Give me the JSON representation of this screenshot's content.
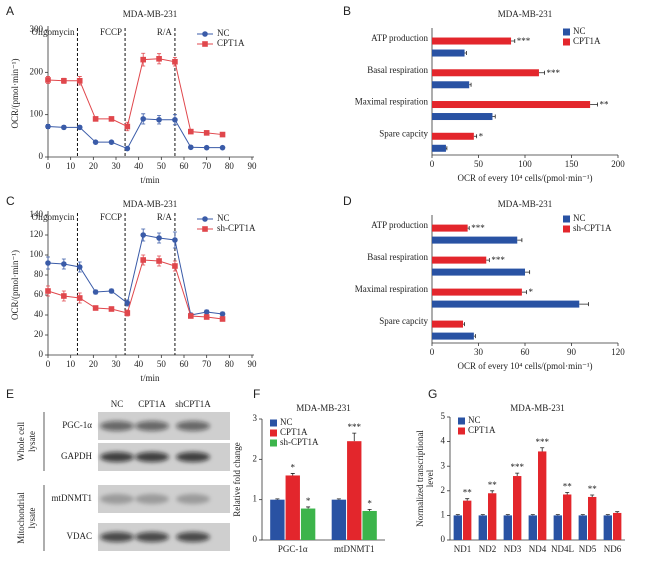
{
  "chart_data": [
    {
      "label": "A",
      "type": "line",
      "title": "MDA-MB-231",
      "xlabel": "t/min",
      "ylabel": "OCR/(pmol·min⁻¹)",
      "x": [
        0,
        7,
        14,
        21,
        28,
        35,
        42,
        49,
        56,
        63,
        70,
        77
      ],
      "series": [
        {
          "name": "NC",
          "color": "#3a5ba8",
          "marker": "circle",
          "values": [
            72,
            70,
            70,
            35,
            35,
            20,
            90,
            88,
            88,
            23,
            22,
            22
          ],
          "errors": [
            5,
            4,
            4,
            3,
            3,
            3,
            12,
            10,
            12,
            3,
            3,
            3
          ]
        },
        {
          "name": "CPT1A",
          "color": "#e0474c",
          "marker": "square",
          "values": [
            182,
            180,
            180,
            90,
            90,
            72,
            230,
            232,
            225,
            60,
            57,
            53
          ],
          "errors": [
            8,
            6,
            10,
            4,
            4,
            10,
            15,
            12,
            10,
            4,
            4,
            4
          ]
        }
      ],
      "xlim": [
        0,
        90
      ],
      "xticks": [
        0,
        10,
        20,
        30,
        40,
        50,
        60,
        70,
        80,
        90
      ],
      "ylim": [
        0,
        300
      ],
      "yticks": [
        0,
        100,
        200,
        300
      ],
      "annotations": [
        {
          "text": "Oligomycin",
          "x": 13
        },
        {
          "text": "FCCP",
          "x": 34
        },
        {
          "text": "R/A",
          "x": 56
        }
      ],
      "legend": "upper right"
    },
    {
      "label": "B",
      "type": "barh",
      "title": "MDA-MB-231",
      "xlabel": "OCR of every 10⁴ cells/(pmol·min⁻¹)",
      "categories": [
        "ATP production",
        "Basal respiration",
        "Maximal respiration",
        "Spare capcity"
      ],
      "series": [
        {
          "name": "NC",
          "color": "#2952a3",
          "values": [
            35,
            40,
            65,
            15
          ],
          "errors": [
            2,
            2,
            3,
            1
          ]
        },
        {
          "name": "CPT1A",
          "color": "#e3262c",
          "values": [
            85,
            115,
            170,
            45
          ],
          "errors": [
            4,
            6,
            8,
            3
          ],
          "significance": [
            "***",
            "***",
            "**",
            "*"
          ]
        }
      ],
      "xlim": [
        0,
        200
      ],
      "xticks": [
        0,
        50,
        100,
        150,
        200
      ],
      "legend": "upper right"
    },
    {
      "label": "C",
      "type": "line",
      "title": "MDA-MB-231",
      "xlabel": "t/min",
      "ylabel": "OCR/(pmol·min⁻¹)",
      "x": [
        0,
        7,
        14,
        21,
        28,
        35,
        42,
        49,
        56,
        63,
        70,
        77
      ],
      "series": [
        {
          "name": "NC",
          "color": "#3a5ba8",
          "marker": "circle",
          "values": [
            92,
            91,
            88,
            63,
            64,
            52,
            120,
            117,
            115,
            40,
            43,
            41
          ],
          "errors": [
            6,
            5,
            5,
            2,
            2,
            3,
            6,
            5,
            8,
            2,
            2,
            2
          ]
        },
        {
          "name": "sh-CPT1A",
          "color": "#e0474c",
          "marker": "square",
          "values": [
            64,
            59,
            57,
            47,
            46,
            42,
            95,
            94,
            89,
            39,
            38,
            36
          ],
          "errors": [
            5,
            5,
            5,
            2,
            2,
            3,
            5,
            5,
            5,
            2,
            2,
            2
          ]
        }
      ],
      "xlim": [
        0,
        90
      ],
      "xticks": [
        0,
        10,
        20,
        30,
        40,
        50,
        60,
        70,
        80,
        90
      ],
      "ylim": [
        0,
        140
      ],
      "yticks": [
        0,
        20,
        40,
        60,
        80,
        100,
        120,
        140
      ],
      "annotations": [
        {
          "text": "Oligomycin",
          "x": 13
        },
        {
          "text": "FCCP",
          "x": 34
        },
        {
          "text": "R/A",
          "x": 56
        }
      ],
      "legend": "upper right"
    },
    {
      "label": "D",
      "type": "barh",
      "title": "MDA-MB-231",
      "xlabel": "OCR of every 10⁴ cells/(pmol·min⁻¹)",
      "categories": [
        "ATP production",
        "Basal respiration",
        "Maximal respiration",
        "Spare capcity"
      ],
      "series": [
        {
          "name": "NC",
          "color": "#2952a3",
          "values": [
            55,
            60,
            95,
            27
          ],
          "errors": [
            3,
            3,
            6,
            1
          ]
        },
        {
          "name": "sh-CPT1A",
          "color": "#e3262c",
          "values": [
            23,
            35,
            58,
            20
          ],
          "errors": [
            1,
            2,
            3,
            1
          ],
          "significance": [
            "***",
            "***",
            "*",
            null
          ]
        }
      ],
      "xlim": [
        0,
        120
      ],
      "xticks": [
        0,
        30,
        60,
        90,
        120
      ],
      "legend": "upper right"
    },
    {
      "label": "F",
      "type": "bar",
      "title": "MDA-MB-231",
      "ylabel": "Relative fold change",
      "categories": [
        "PGC-1α",
        "mtDNMT1"
      ],
      "series": [
        {
          "name": "NC",
          "color": "#2952a3",
          "values": [
            1,
            1
          ],
          "errors": [
            0.02,
            0.02
          ]
        },
        {
          "name": "CPT1A",
          "color": "#e3262c",
          "values": [
            1.6,
            2.45
          ],
          "errors": [
            0.05,
            0.2
          ],
          "significance": [
            "*",
            "***"
          ]
        },
        {
          "name": "sh-CPT1A",
          "color": "#3cb44b",
          "values": [
            0.78,
            0.72
          ],
          "errors": [
            0.04,
            0.04
          ],
          "significance": [
            "*",
            "*"
          ]
        }
      ],
      "ylim": [
        0,
        3
      ],
      "yticks": [
        0,
        1,
        2,
        3
      ],
      "legend": "upper left"
    },
    {
      "label": "G",
      "type": "bar",
      "title": "MDA-MB-231",
      "ylabel": [
        "Normalized transcriptional",
        "level"
      ],
      "categories": [
        "ND1",
        "ND2",
        "ND3",
        "ND4",
        "ND4L",
        "ND5",
        "ND6"
      ],
      "series": [
        {
          "name": "NC",
          "color": "#2952a3",
          "values": [
            1,
            1,
            1,
            1,
            1,
            1,
            1
          ],
          "errors": [
            0.03,
            0.03,
            0.03,
            0.03,
            0.03,
            0.03,
            0.03
          ]
        },
        {
          "name": "CPT1A",
          "color": "#e3262c",
          "values": [
            1.6,
            1.9,
            2.6,
            3.6,
            1.85,
            1.75,
            1.1
          ],
          "errors": [
            0.08,
            0.1,
            0.12,
            0.15,
            0.08,
            0.08,
            0.05
          ],
          "significance": [
            "**",
            "**",
            "***",
            "***",
            "**",
            "**",
            null
          ]
        }
      ],
      "ylim": [
        0,
        5
      ],
      "yticks": [
        0,
        1,
        2,
        3,
        4,
        5
      ],
      "legend": "upper left"
    }
  ],
  "blot": {
    "label": "E",
    "columns": [
      "NC",
      "CPT1A",
      "shCPT1A"
    ],
    "groups": [
      {
        "lines": [
          "Whole cell",
          "lysate"
        ],
        "rows": [
          "PGC-1α",
          "GAPDH"
        ]
      },
      {
        "lines": [
          "Mitochondrial",
          "lysate"
        ],
        "rows": [
          "mtDNMT1",
          "VDAC"
        ]
      }
    ]
  }
}
